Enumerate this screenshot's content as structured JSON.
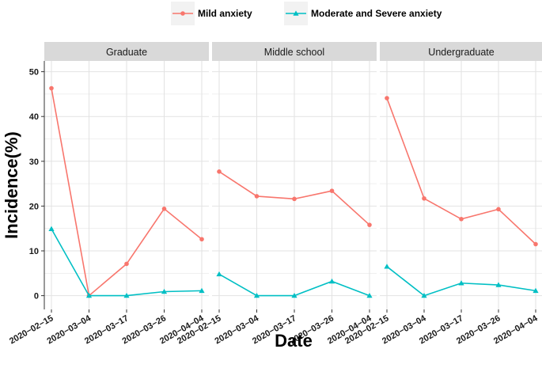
{
  "chart_data": {
    "type": "line",
    "xlabel": "Date",
    "ylabel": "Incidence(%)",
    "ylim": [
      0,
      50
    ],
    "yticks": [
      0,
      10,
      20,
      30,
      40,
      50
    ],
    "categories": [
      "2020−02−15",
      "2020−03−04",
      "2020−03−17",
      "2020−03−26",
      "2020−04−04"
    ],
    "legend": {
      "position": "top",
      "entries": [
        {
          "name": "Mild anxiety",
          "color": "#F8766D",
          "marker": "circle"
        },
        {
          "name": "Moderate and Severe anxiety",
          "color": "#00BFC4",
          "marker": "triangle"
        }
      ]
    },
    "panels": [
      {
        "title": "Graduate",
        "series": [
          {
            "name": "Mild anxiety",
            "values": [
              46.3,
              0.0,
              7.1,
              19.4,
              12.6
            ]
          },
          {
            "name": "Moderate and Severe anxiety",
            "values": [
              14.9,
              0.0,
              0.0,
              0.9,
              1.1
            ]
          }
        ]
      },
      {
        "title": "Middle school",
        "series": [
          {
            "name": "Mild anxiety",
            "values": [
              27.7,
              22.2,
              21.6,
              23.4,
              15.8
            ]
          },
          {
            "name": "Moderate and Severe anxiety",
            "values": [
              4.8,
              0.0,
              0.0,
              3.2,
              0.0
            ]
          }
        ]
      },
      {
        "title": "Undergraduate",
        "series": [
          {
            "name": "Mild anxiety",
            "values": [
              44.1,
              21.7,
              17.1,
              19.3,
              11.5
            ]
          },
          {
            "name": "Moderate and Severe anxiety",
            "values": [
              6.5,
              0.0,
              2.8,
              2.4,
              1.1
            ]
          }
        ]
      }
    ]
  }
}
